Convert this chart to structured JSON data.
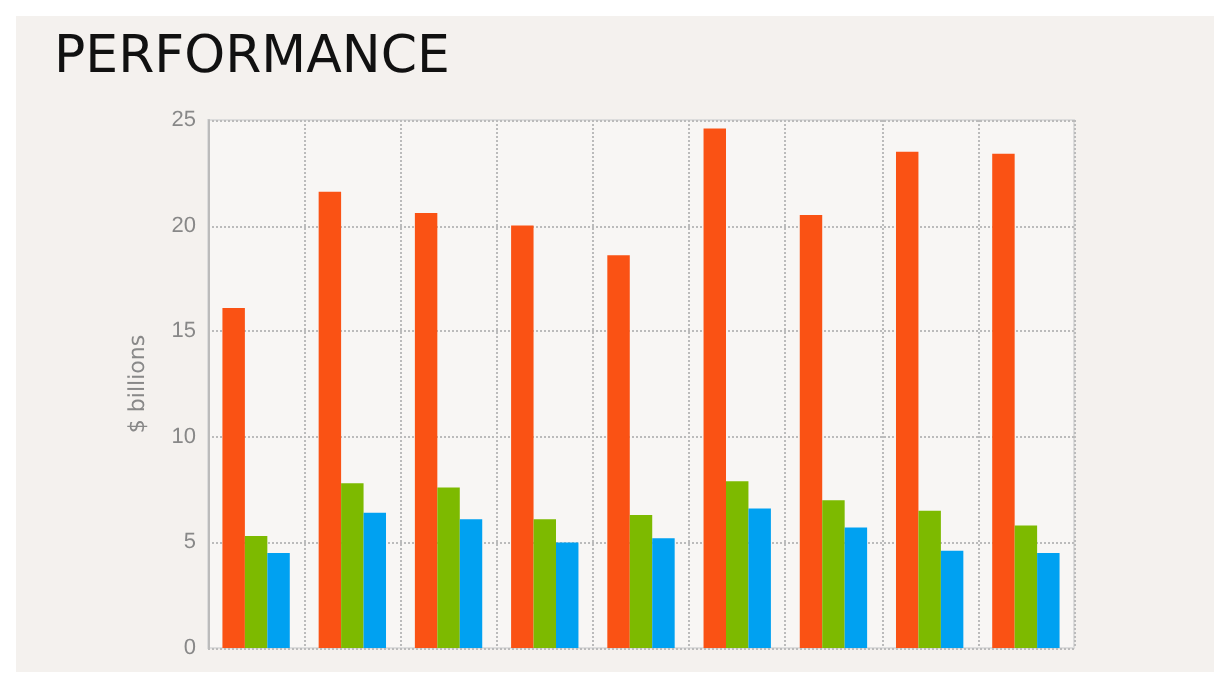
{
  "chart_data": {
    "type": "bar",
    "title": "PERFORMANCE",
    "ylabel": "$ billions",
    "categories": [
      null,
      null,
      null,
      null,
      null,
      null,
      null,
      null,
      null
    ],
    "series": [
      {
        "color": "#fa5214",
        "values": [
          16.1,
          21.6,
          20.6,
          20.0,
          18.6,
          24.6,
          20.5,
          23.5,
          23.4
        ]
      },
      {
        "color": "#7dba00",
        "values": [
          5.3,
          7.8,
          7.6,
          6.1,
          6.3,
          7.9,
          7.0,
          6.5,
          5.8
        ]
      },
      {
        "color": "#00a1f1",
        "values": [
          4.5,
          6.4,
          6.1,
          5.0,
          5.2,
          6.6,
          5.7,
          4.6,
          4.5
        ]
      }
    ],
    "ylim": [
      0,
      25
    ],
    "yticks": [
      0,
      5,
      10,
      15,
      20,
      25
    ],
    "grid": true,
    "tick_labels": "y"
  }
}
